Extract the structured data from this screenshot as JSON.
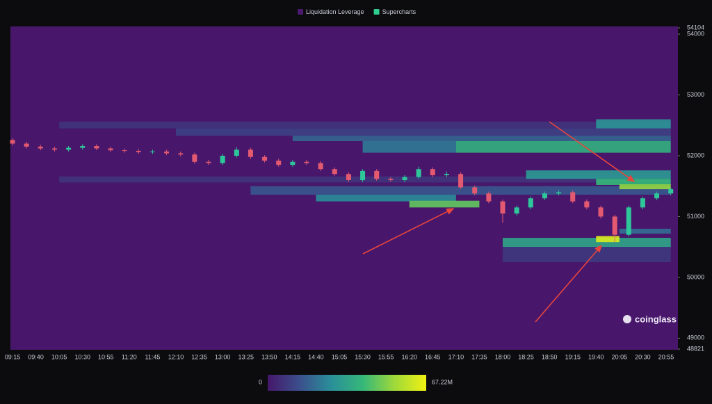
{
  "chart_data": {
    "type": "heatmap",
    "legend": [
      {
        "name": "Liquidation Leverage",
        "color": "#4a1a6e"
      },
      {
        "name": "Supercharts",
        "color": "#2ecc8f"
      }
    ],
    "plot_color": "#48176c",
    "x_labels": [
      "09:15",
      "09:40",
      "10:05",
      "10:30",
      "10:55",
      "11:20",
      "11:45",
      "12:10",
      "12:35",
      "13:00",
      "13:25",
      "13:50",
      "14:15",
      "14:40",
      "15:05",
      "15:30",
      "15:55",
      "16:20",
      "16:45",
      "17:10",
      "17:35",
      "18:00",
      "18:25",
      "18:50",
      "19:15",
      "19:40",
      "20:05",
      "20:30",
      "20:55"
    ],
    "ylim": [
      48821,
      54104
    ],
    "yticks": [
      48821,
      49000,
      50000,
      51000,
      52000,
      53000,
      54000,
      54104
    ],
    "colorbar": {
      "range": [
        0,
        67220000
      ],
      "ticks": [
        0,
        {
          "value": 67220000,
          "label": "67.22M"
        }
      ],
      "colors": [
        "#45176b",
        "#3b4f8c",
        "#2a8f99",
        "#35b779",
        "#9fd93a",
        "#f0f012"
      ]
    },
    "heatmap": [
      {
        "start": "10:05",
        "end": "21:00",
        "low": 52450,
        "high": 52560,
        "value": 7000000
      },
      {
        "start": "12:10",
        "end": "21:00",
        "low": 52330,
        "high": 52450,
        "value": 10000000
      },
      {
        "start": "14:15",
        "end": "21:00",
        "low": 52240,
        "high": 52330,
        "value": 18000000
      },
      {
        "start": "15:30",
        "end": "17:10",
        "low": 52050,
        "high": 52240,
        "value": 22000000
      },
      {
        "start": "17:10",
        "end": "21:00",
        "low": 52050,
        "high": 52240,
        "value": 38000000
      },
      {
        "start": "19:40",
        "end": "21:00",
        "low": 52450,
        "high": 52600,
        "value": 28000000
      },
      {
        "start": "10:05",
        "end": "21:00",
        "low": 51560,
        "high": 51660,
        "value": 7000000
      },
      {
        "start": "13:30",
        "end": "21:00",
        "low": 51360,
        "high": 51500,
        "value": 15000000
      },
      {
        "start": "14:40",
        "end": "17:10",
        "low": 51250,
        "high": 51360,
        "value": 26000000
      },
      {
        "start": "16:20",
        "end": "17:35",
        "low": 51150,
        "high": 51260,
        "value": 46000000
      },
      {
        "start": "18:25",
        "end": "21:00",
        "low": 51620,
        "high": 51760,
        "value": 30000000
      },
      {
        "start": "19:40",
        "end": "21:00",
        "low": 51520,
        "high": 51620,
        "value": 40000000
      },
      {
        "start": "20:05",
        "end": "21:00",
        "low": 51450,
        "high": 51530,
        "value": 52000000
      },
      {
        "start": "18:00",
        "end": "21:00",
        "low": 50500,
        "high": 50650,
        "value": 34000000
      },
      {
        "start": "19:40",
        "end": "20:05",
        "low": 50580,
        "high": 50680,
        "value": 63000000
      },
      {
        "start": "18:00",
        "end": "21:00",
        "low": 50250,
        "high": 50500,
        "value": 8000000
      },
      {
        "start": "20:05",
        "end": "21:00",
        "low": 50720,
        "high": 50800,
        "value": 20000000
      }
    ],
    "up_color": "#2ec79a",
    "down_color": "#e35a70",
    "candles": {
      "x": [
        "09:15",
        "09:30",
        "09:45",
        "10:00",
        "10:15",
        "10:30",
        "10:45",
        "11:00",
        "11:15",
        "11:30",
        "11:45",
        "12:00",
        "12:15",
        "12:30",
        "12:45",
        "13:00",
        "13:15",
        "13:30",
        "13:45",
        "14:00",
        "14:15",
        "14:30",
        "14:45",
        "15:00",
        "15:15",
        "15:30",
        "15:45",
        "16:00",
        "16:15",
        "16:30",
        "16:45",
        "17:00",
        "17:15",
        "17:30",
        "17:45",
        "18:00",
        "18:15",
        "18:30",
        "18:45",
        "19:00",
        "19:15",
        "19:30",
        "19:45",
        "20:00",
        "20:15",
        "20:30",
        "20:45",
        "21:00"
      ],
      "open": [
        52260,
        52200,
        52150,
        52120,
        52100,
        52130,
        52160,
        52120,
        52090,
        52080,
        52060,
        52070,
        52040,
        52020,
        51900,
        51880,
        52000,
        52100,
        51980,
        51920,
        51850,
        51900,
        51880,
        51780,
        51700,
        51600,
        51750,
        51620,
        51600,
        51650,
        51780,
        51680,
        51700,
        51480,
        51380,
        51250,
        51050,
        51150,
        51300,
        51380,
        51400,
        51250,
        51150,
        51000,
        50700,
        51150,
        51300,
        51380
      ],
      "close": [
        52200,
        52150,
        52120,
        52100,
        52130,
        52160,
        52120,
        52090,
        52080,
        52060,
        52070,
        52040,
        52020,
        51900,
        51880,
        52000,
        52100,
        51980,
        51920,
        51850,
        51900,
        51880,
        51780,
        51700,
        51600,
        51750,
        51620,
        51600,
        51650,
        51780,
        51680,
        51700,
        51480,
        51380,
        51250,
        51050,
        51150,
        51300,
        51380,
        51400,
        51250,
        51150,
        51000,
        50700,
        51150,
        51300,
        51380,
        51450
      ],
      "high": [
        52290,
        52230,
        52180,
        52150,
        52160,
        52190,
        52190,
        52150,
        52120,
        52110,
        52100,
        52100,
        52070,
        52050,
        51930,
        52030,
        52140,
        52130,
        52010,
        51950,
        51930,
        51930,
        51910,
        51810,
        51730,
        51780,
        51780,
        51650,
        51680,
        51820,
        51810,
        51740,
        51730,
        51510,
        51410,
        51280,
        51180,
        51330,
        51410,
        51430,
        51430,
        51280,
        51180,
        51030,
        51180,
        51330,
        51410,
        51480
      ],
      "low": [
        52170,
        52120,
        52090,
        52070,
        52070,
        52100,
        52090,
        52060,
        52050,
        52030,
        52030,
        52010,
        51990,
        51870,
        51850,
        51850,
        51970,
        51950,
        51890,
        51820,
        51820,
        51850,
        51750,
        51670,
        51570,
        51570,
        51590,
        51570,
        51570,
        51620,
        51650,
        51650,
        51450,
        51350,
        51220,
        50900,
        51020,
        51120,
        51270,
        51350,
        51220,
        51120,
        50970,
        50580,
        50670,
        51120,
        51270,
        51350
      ]
    },
    "watermark": "coinglass"
  }
}
